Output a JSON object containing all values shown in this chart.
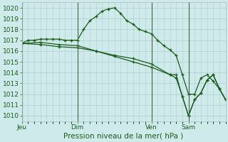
{
  "background_color": "#ceeaea",
  "grid_color": "#b0cccc",
  "line_color": "#1a5c1a",
  "xlabel": "Pression niveau de la mer( hPa )",
  "ylim": [
    1009.5,
    1020.5
  ],
  "yticks": [
    1010,
    1011,
    1012,
    1013,
    1014,
    1015,
    1016,
    1017,
    1018,
    1019,
    1020
  ],
  "day_labels": [
    "Jeu",
    "Dim",
    "Ven",
    "Sam"
  ],
  "day_positions": [
    0,
    9,
    21,
    27
  ],
  "xlim": [
    0,
    33
  ],
  "series1_x": [
    0,
    1,
    2,
    3,
    4,
    5,
    6,
    7,
    8,
    9,
    10,
    11,
    12,
    13,
    14,
    15,
    16,
    17,
    18,
    19,
    20,
    21,
    22,
    23,
    24,
    25,
    26,
    27,
    28,
    29,
    30,
    31,
    32,
    33
  ],
  "series1_y": [
    1016.7,
    1017.0,
    1017.0,
    1017.1,
    1017.1,
    1017.1,
    1017.1,
    1017.0,
    1017.0,
    1017.0,
    1018.0,
    1018.8,
    1019.2,
    1019.7,
    1019.9,
    1020.0,
    1019.5,
    1018.8,
    1018.5,
    1018.0,
    1017.8,
    1017.6,
    1017.0,
    1016.5,
    1016.1,
    1015.6,
    1013.8,
    1012.0,
    1012.0,
    1013.5,
    1013.8,
    1013.2,
    1012.5,
    1011.5
  ],
  "series2_x": [
    0,
    3,
    6,
    9,
    12,
    15,
    18,
    21,
    24,
    25,
    26,
    27,
    28,
    29,
    30,
    31,
    32,
    33
  ],
  "series2_y": [
    1016.7,
    1016.8,
    1016.6,
    1016.5,
    1016.0,
    1015.5,
    1015.0,
    1014.5,
    1013.8,
    1013.8,
    1011.8,
    1010.0,
    1011.5,
    1012.1,
    1013.3,
    1013.8,
    1012.5,
    1011.5
  ],
  "series3_x": [
    0,
    3,
    6,
    9,
    12,
    15,
    18,
    21,
    24,
    25,
    26,
    27,
    28,
    29,
    30,
    31,
    32,
    33
  ],
  "series3_y": [
    1016.7,
    1016.6,
    1016.4,
    1016.3,
    1016.0,
    1015.6,
    1015.3,
    1014.8,
    1013.8,
    1013.5,
    1011.8,
    1010.0,
    1011.5,
    1012.1,
    1013.3,
    1013.8,
    1012.5,
    1011.5
  ],
  "fontsize_ticks": 6.5,
  "fontsize_xlabel": 7.5
}
